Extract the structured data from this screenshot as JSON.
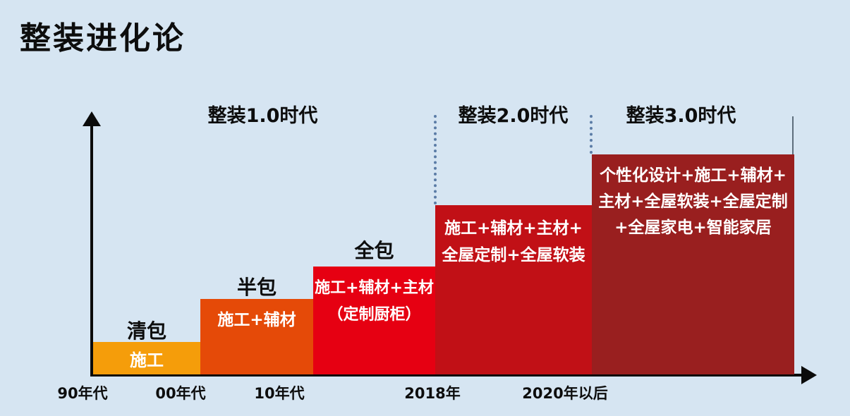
{
  "title": "整装进化论",
  "colors": {
    "background": "#D6E5F2",
    "axis": "#0b0b0b",
    "dotted_divider": "#5B7CA6",
    "era_end_tick": "#5E6E7C",
    "bar_text": "#FFFFFF"
  },
  "chart_data": {
    "type": "bar",
    "title": "整装进化论",
    "categories": [
      "90年代",
      "00年代",
      "10年代",
      "2018年",
      "2020年以后"
    ],
    "values": [
      1,
      2,
      3,
      4,
      5
    ],
    "relative_heights": [
      0.15,
      0.34,
      0.49,
      0.77,
      1.0
    ],
    "era_labels": [
      "整装1.0时代",
      "整装2.0时代",
      "整装3.0时代"
    ],
    "bars": [
      {
        "stage_label": "清包",
        "lines": [
          "施工"
        ],
        "color": "#F59D0A",
        "x_label": "90年代"
      },
      {
        "stage_label": "半包",
        "lines": [
          "施工+辅材"
        ],
        "color": "#E54A08",
        "x_label": "00年代"
      },
      {
        "stage_label": "全包",
        "lines": [
          "施工+辅材+主材",
          "（定制厨柜）"
        ],
        "color": "#E60012",
        "x_label": "10年代"
      },
      {
        "stage_label": "",
        "lines": [
          "施工+辅材+主材+",
          "全屋定制+全屋软装"
        ],
        "color": "#C11016",
        "x_label": "2018年"
      },
      {
        "stage_label": "",
        "lines": [
          "个性化设计+施工+辅材+",
          "主材+全屋软装+全屋定制",
          "+全屋家电+智能家居"
        ],
        "color": "#991F1F",
        "x_label": "2020年以后"
      }
    ],
    "xlabel": "",
    "ylabel": "",
    "legend": false,
    "grid": false
  }
}
